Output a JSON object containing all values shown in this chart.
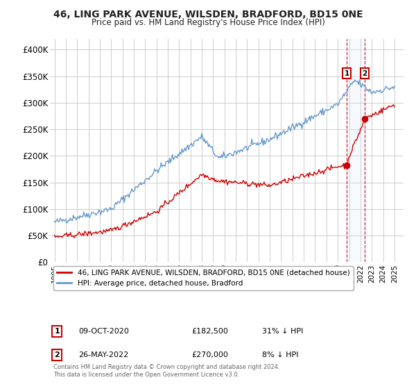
{
  "title": "46, LING PARK AVENUE, WILSDEN, BRADFORD, BD15 0NE",
  "subtitle": "Price paid vs. HM Land Registry's House Price Index (HPI)",
  "footer": "Contains HM Land Registry data © Crown copyright and database right 2024.\nThis data is licensed under the Open Government Licence v3.0.",
  "legend_label_red": "46, LING PARK AVENUE, WILSDEN, BRADFORD, BD15 0NE (detached house)",
  "legend_label_blue": "HPI: Average price, detached house, Bradford",
  "red_color": "#cc0000",
  "blue_color": "#6699cc",
  "sale1_x": 2020.79,
  "sale1_y": 182500,
  "sale2_x": 2022.37,
  "sale2_y": 270000,
  "sale1_date": "09-OCT-2020",
  "sale1_price": "£182,500",
  "sale1_note": "31% ↓ HPI",
  "sale2_date": "26-MAY-2022",
  "sale2_price": "£270,000",
  "sale2_note": "8% ↓ HPI",
  "ylim": [
    0,
    420000
  ],
  "yticks": [
    0,
    50000,
    100000,
    150000,
    200000,
    250000,
    300000,
    350000,
    400000
  ],
  "ytick_labels": [
    "£0",
    "£50K",
    "£100K",
    "£150K",
    "£200K",
    "£250K",
    "£300K",
    "£350K",
    "£400K"
  ],
  "xlim_left": 1994.6,
  "xlim_right": 2025.8,
  "background_color": "#ffffff",
  "grid_color": "#cccccc",
  "shade_color": "#ddeeff"
}
